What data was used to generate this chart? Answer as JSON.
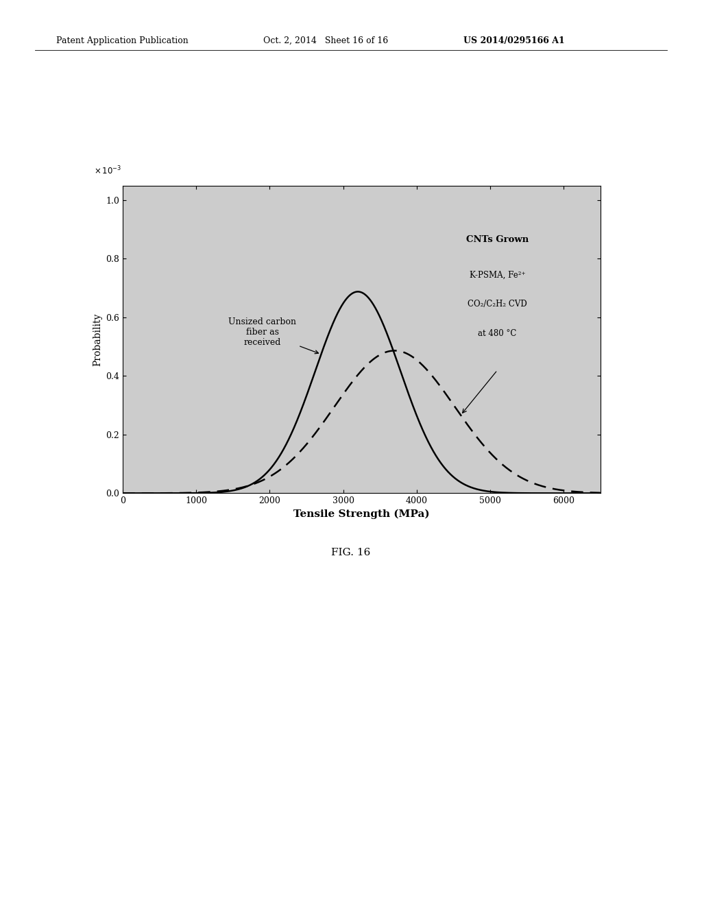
{
  "header_left": "Patent Application Publication",
  "header_mid": "Oct. 2, 2014   Sheet 16 of 16",
  "header_right": "US 2014/0295166 A1",
  "fig_caption": "FIG. 16",
  "ylabel": "Probability",
  "xlabel": "Tensile Strength (MPa)",
  "xlim": [
    0,
    6500
  ],
  "ylim": [
    0,
    1.05
  ],
  "yticks": [
    0,
    0.2,
    0.4,
    0.6,
    0.8,
    1.0
  ],
  "xticks": [
    0,
    1000,
    2000,
    3000,
    4000,
    5000,
    6000
  ],
  "curve1": {
    "mean": 3200,
    "std": 580,
    "linestyle": "solid",
    "color": "#000000",
    "linewidth": 1.8
  },
  "curve2": {
    "mean": 3700,
    "std": 820,
    "linestyle": "dashed",
    "color": "#000000",
    "linewidth": 1.8
  },
  "background_color": "#ffffff",
  "plot_bg_color": "#cccccc",
  "header_fontsize": 9,
  "axis_fontsize": 10,
  "tick_fontsize": 9,
  "annot_fontsize": 9,
  "caption_fontsize": 11
}
